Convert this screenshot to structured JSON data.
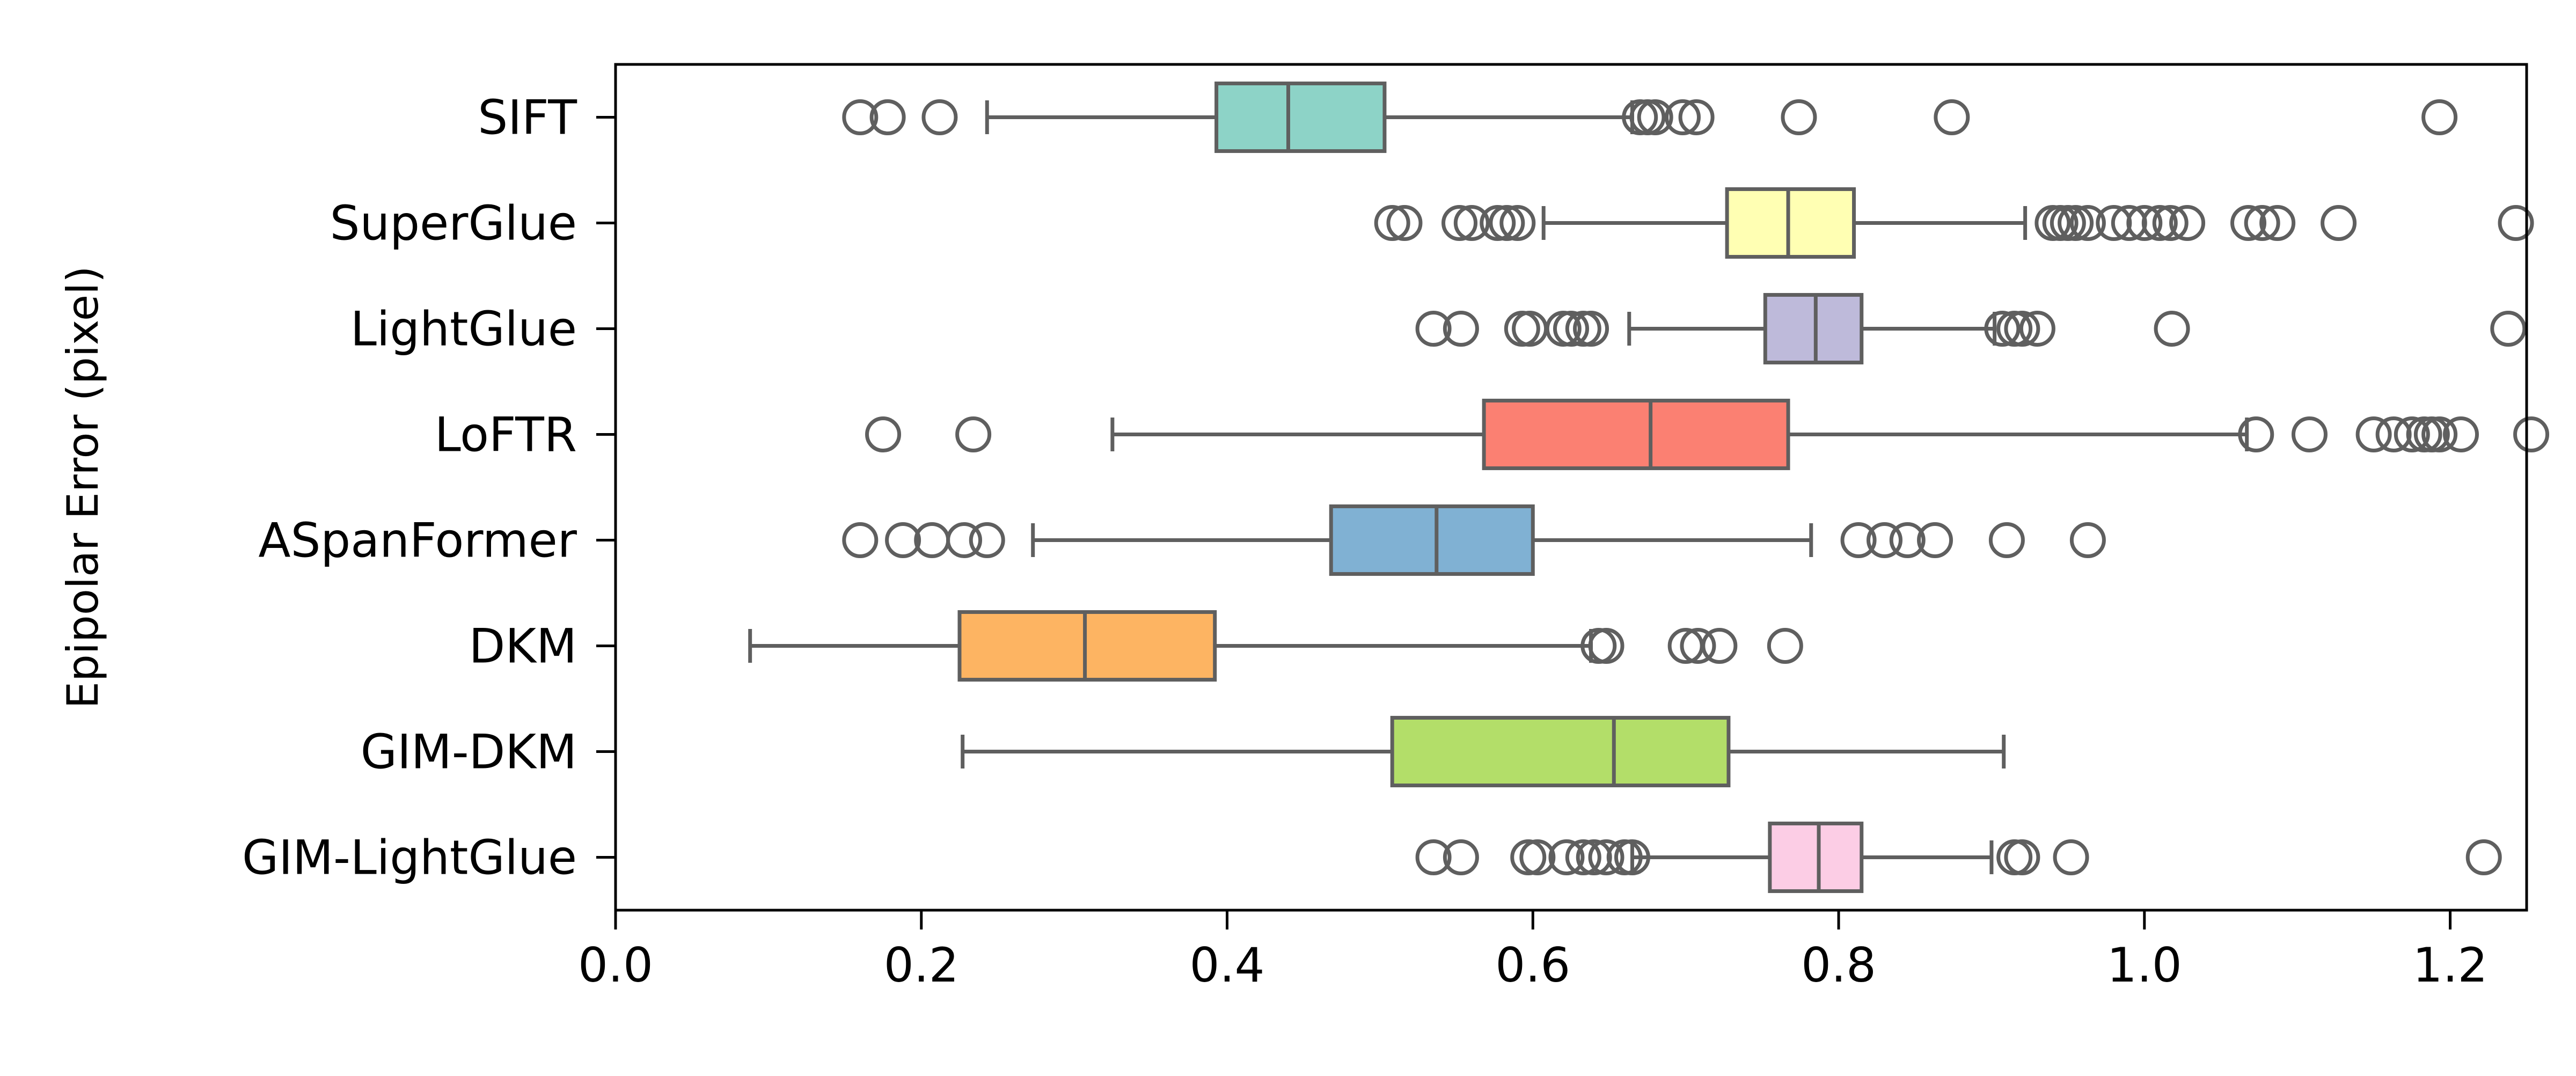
{
  "chart_data": {
    "type": "boxplot",
    "orientation": "horizontal",
    "title": "",
    "xlabel": "",
    "ylabel": "Epipolar Error (pixel)",
    "xlim": [
      0.0,
      1.25
    ],
    "xticks": [
      "0.0",
      "0.2",
      "0.4",
      "0.6",
      "0.8",
      "1.0",
      "1.2"
    ],
    "grid": false,
    "legend": "none",
    "box_edge_color": "#5f5f5f",
    "series": [
      {
        "name": "SIFT",
        "color": "#8dd3c7",
        "whisker_low": 0.243,
        "q1": 0.393,
        "median": 0.44,
        "q3": 0.503,
        "whisker_high": 0.665,
        "outliers": [
          0.16,
          0.178,
          0.212,
          0.67,
          0.675,
          0.68,
          0.698,
          0.707,
          0.774,
          0.874,
          1.193
        ]
      },
      {
        "name": "SuperGlue",
        "color": "#ffffb3",
        "whisker_low": 0.607,
        "q1": 0.727,
        "median": 0.767,
        "q3": 0.81,
        "whisker_high": 0.922,
        "outliers": [
          0.508,
          0.516,
          0.552,
          0.56,
          0.577,
          0.583,
          0.59,
          0.94,
          0.945,
          0.95,
          0.955,
          0.963,
          0.98,
          0.99,
          1.0,
          1.01,
          1.017,
          1.028,
          1.068,
          1.077,
          1.087,
          1.127,
          1.243
        ]
      },
      {
        "name": "LightGlue",
        "color": "#bebada",
        "whisker_low": 0.663,
        "q1": 0.752,
        "median": 0.785,
        "q3": 0.815,
        "whisker_high": 0.902,
        "outliers": [
          0.535,
          0.553,
          0.593,
          0.598,
          0.62,
          0.625,
          0.633,
          0.638,
          0.907,
          0.915,
          0.92,
          0.93,
          1.018,
          1.238
        ]
      },
      {
        "name": "LoFTR",
        "color": "#fb8072",
        "whisker_low": 0.325,
        "q1": 0.568,
        "median": 0.677,
        "q3": 0.767,
        "whisker_high": 1.067,
        "outliers": [
          0.175,
          0.234,
          1.073,
          1.108,
          1.15,
          1.163,
          1.175,
          1.183,
          1.188,
          1.193,
          1.207,
          1.253
        ]
      },
      {
        "name": "ASpanFormer",
        "color": "#80b1d3",
        "whisker_low": 0.273,
        "q1": 0.468,
        "median": 0.537,
        "q3": 0.6,
        "whisker_high": 0.782,
        "outliers": [
          0.16,
          0.188,
          0.207,
          0.228,
          0.243,
          0.813,
          0.83,
          0.845,
          0.863,
          0.91,
          0.963
        ]
      },
      {
        "name": "DKM",
        "color": "#fdb462",
        "whisker_low": 0.088,
        "q1": 0.225,
        "median": 0.307,
        "q3": 0.392,
        "whisker_high": 0.638,
        "outliers": [
          0.643,
          0.648,
          0.7,
          0.708,
          0.722,
          0.765
        ]
      },
      {
        "name": "GIM-DKM",
        "color": "#b3de69",
        "whisker_low": 0.227,
        "q1": 0.508,
        "median": 0.653,
        "q3": 0.728,
        "whisker_high": 0.908,
        "outliers": []
      },
      {
        "name": "GIM-LightGlue",
        "color": "#fccde5",
        "whisker_low": 0.665,
        "q1": 0.755,
        "median": 0.787,
        "q3": 0.815,
        "whisker_high": 0.9,
        "outliers": [
          0.535,
          0.553,
          0.597,
          0.603,
          0.622,
          0.633,
          0.64,
          0.648,
          0.66,
          0.665,
          0.915,
          0.92,
          0.952,
          1.222
        ]
      }
    ]
  }
}
